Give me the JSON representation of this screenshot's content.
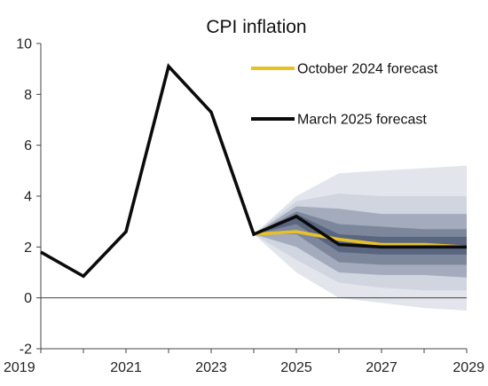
{
  "chart_data": {
    "type": "line",
    "title": "CPI inflation",
    "xlabel": "",
    "ylabel": "",
    "xlim": [
      2019,
      2029
    ],
    "ylim": [
      -2,
      10
    ],
    "x_ticks": [
      "2019",
      "2021",
      "2023",
      "2025",
      "2027",
      "2029"
    ],
    "y_ticks": [
      "-2",
      "0",
      "2",
      "4",
      "6",
      "8",
      "10"
    ],
    "grid": false,
    "legend_position": "top-right",
    "series": [
      {
        "name": "October 2024 forecast",
        "color": "#e6c229",
        "x": [
          2024,
          2025,
          2026,
          2027,
          2028,
          2029
        ],
        "y": [
          2.5,
          2.6,
          2.3,
          2.1,
          2.1,
          2.0
        ]
      },
      {
        "name": "March 2025 forecast",
        "color": "#0b0b0b",
        "x": [
          2019,
          2020,
          2021,
          2022,
          2023,
          2024,
          2025,
          2026,
          2027,
          2028,
          2029
        ],
        "y": [
          1.8,
          0.85,
          2.6,
          9.1,
          7.3,
          2.5,
          3.2,
          2.1,
          2.0,
          2.0,
          2.0
        ]
      }
    ],
    "fan_chart": {
      "x": [
        2024,
        2025,
        2026,
        2027,
        2028,
        2029
      ],
      "bands": [
        {
          "color": "#e3e5ec",
          "lower": [
            2.5,
            1.0,
            0.0,
            -0.2,
            -0.4,
            -0.5
          ],
          "upper": [
            2.5,
            4.0,
            4.9,
            5.0,
            5.1,
            5.2
          ]
        },
        {
          "color": "#d1d5df",
          "lower": [
            2.5,
            1.5,
            0.6,
            0.4,
            0.3,
            0.3
          ],
          "upper": [
            2.5,
            3.8,
            4.1,
            4.0,
            4.0,
            4.0
          ]
        },
        {
          "color": "#a3abbd",
          "lower": [
            2.5,
            2.0,
            1.0,
            0.9,
            0.9,
            0.8
          ],
          "upper": [
            2.5,
            3.6,
            3.5,
            3.3,
            3.3,
            3.3
          ]
        },
        {
          "color": "#7d879c",
          "lower": [
            2.5,
            2.5,
            1.4,
            1.3,
            1.3,
            1.3
          ],
          "upper": [
            2.5,
            3.4,
            2.9,
            2.8,
            2.7,
            2.7
          ]
        },
        {
          "color": "#5a6580",
          "lower": [
            2.5,
            2.9,
            1.8,
            1.7,
            1.7,
            1.7
          ],
          "upper": [
            2.5,
            3.3,
            2.5,
            2.4,
            2.4,
            2.4
          ]
        }
      ]
    }
  }
}
